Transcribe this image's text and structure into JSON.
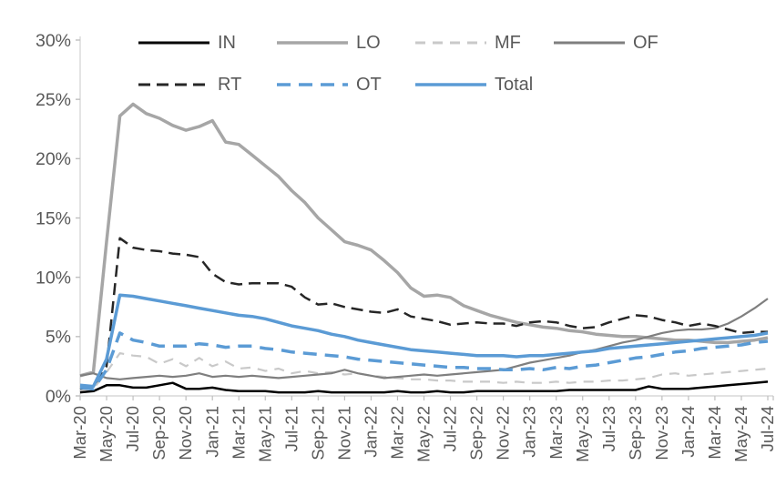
{
  "chart_data": {
    "type": "line",
    "title": "",
    "background": "#ffffff",
    "axis": {
      "line_color": "#d9d9d9",
      "tick_color": "#bfbfbf",
      "label_color": "#595959"
    },
    "ylim": [
      0,
      30
    ],
    "y_tick_step": 5,
    "y_tick_labels": [
      "0%",
      "5%",
      "10%",
      "15%",
      "20%",
      "25%",
      "30%"
    ],
    "x_label_every_n_months": 2,
    "x_tick_labels": [
      "Mar-20",
      "May-20",
      "Jul-20",
      "Sep-20",
      "Nov-20",
      "Jan-21",
      "Mar-21",
      "May-21",
      "Jul-21",
      "Sep-21",
      "Nov-21",
      "Jan-22",
      "Mar-22",
      "May-22",
      "Jul-22",
      "Sep-22",
      "Nov-22",
      "Jan-23",
      "Mar-23",
      "May-23",
      "Jul-23",
      "Sep-23",
      "Nov-23",
      "Jan-24",
      "Mar-24",
      "May-24",
      "Jul-24"
    ],
    "x_monthly_labels": [
      "Mar-20",
      "Apr-20",
      "May-20",
      "Jun-20",
      "Jul-20",
      "Aug-20",
      "Sep-20",
      "Oct-20",
      "Nov-20",
      "Dec-20",
      "Jan-21",
      "Feb-21",
      "Mar-21",
      "Apr-21",
      "May-21",
      "Jun-21",
      "Jul-21",
      "Aug-21",
      "Sep-21",
      "Oct-21",
      "Nov-21",
      "Dec-21",
      "Jan-22",
      "Feb-22",
      "Mar-22",
      "Apr-22",
      "May-22",
      "Jun-22",
      "Jul-22",
      "Aug-22",
      "Sep-22",
      "Oct-22",
      "Nov-22",
      "Dec-22",
      "Jan-23",
      "Feb-23",
      "Mar-23",
      "Apr-23",
      "May-23",
      "Jun-23",
      "Jul-23",
      "Aug-23",
      "Sep-23",
      "Oct-23",
      "Nov-23",
      "Dec-23",
      "Jan-24",
      "Feb-24",
      "Mar-24",
      "Apr-24",
      "May-24",
      "Jun-24",
      "Jul-24"
    ],
    "legend": {
      "position": "top",
      "rows": [
        [
          "IN",
          "LO",
          "MF",
          "OF"
        ],
        [
          "RT",
          "OT",
          "Total"
        ]
      ]
    },
    "series": [
      {
        "name": "IN",
        "color": "#000000",
        "dash": "",
        "width": 2.5,
        "values": [
          0.3,
          0.4,
          0.9,
          0.9,
          0.7,
          0.7,
          0.9,
          1.1,
          0.6,
          0.6,
          0.7,
          0.5,
          0.4,
          0.4,
          0.4,
          0.3,
          0.3,
          0.3,
          0.4,
          0.3,
          0.3,
          0.3,
          0.3,
          0.3,
          0.4,
          0.3,
          0.3,
          0.4,
          0.3,
          0.3,
          0.4,
          0.4,
          0.4,
          0.4,
          0.4,
          0.4,
          0.4,
          0.5,
          0.5,
          0.5,
          0.5,
          0.5,
          0.5,
          0.8,
          0.6,
          0.6,
          0.6,
          0.7,
          0.8,
          0.9,
          1.0,
          1.1,
          1.2
        ]
      },
      {
        "name": "LO",
        "color": "#a6a6a6",
        "dash": "",
        "width": 3.5,
        "values": [
          1.7,
          2.0,
          13.0,
          23.6,
          24.6,
          23.8,
          23.4,
          22.8,
          22.4,
          22.7,
          23.2,
          21.4,
          21.2,
          20.3,
          19.4,
          18.5,
          17.3,
          16.3,
          15.0,
          14.0,
          13.0,
          12.7,
          12.3,
          11.4,
          10.4,
          9.1,
          8.4,
          8.5,
          8.3,
          7.6,
          7.2,
          6.8,
          6.5,
          6.2,
          6.0,
          5.8,
          5.7,
          5.5,
          5.4,
          5.2,
          5.1,
          5.0,
          5.0,
          4.9,
          4.8,
          4.7,
          4.7,
          4.6,
          4.5,
          4.5,
          4.6,
          4.7,
          4.9
        ]
      },
      {
        "name": "MF",
        "color": "#c9c9c9",
        "dash": "11 8",
        "width": 2.2,
        "values": [
          0.5,
          0.6,
          2.0,
          3.6,
          3.4,
          3.3,
          2.7,
          3.1,
          2.5,
          3.2,
          2.5,
          2.9,
          2.3,
          2.4,
          2.1,
          2.3,
          1.9,
          2.1,
          1.9,
          2.0,
          1.8,
          1.9,
          1.7,
          1.6,
          1.5,
          1.4,
          1.4,
          1.3,
          1.3,
          1.2,
          1.2,
          1.2,
          1.1,
          1.2,
          1.1,
          1.1,
          1.2,
          1.1,
          1.2,
          1.2,
          1.3,
          1.3,
          1.4,
          1.5,
          1.8,
          1.9,
          1.7,
          1.8,
          1.9,
          2.0,
          2.1,
          2.2,
          2.3
        ]
      },
      {
        "name": "OF",
        "color": "#7f7f7f",
        "dash": "",
        "width": 2.2,
        "values": [
          1.7,
          1.9,
          1.5,
          1.4,
          1.5,
          1.6,
          1.7,
          1.6,
          1.7,
          1.9,
          1.6,
          1.7,
          1.6,
          1.7,
          1.6,
          1.5,
          1.6,
          1.7,
          1.8,
          1.9,
          2.2,
          1.9,
          1.7,
          1.5,
          1.6,
          1.7,
          1.8,
          1.7,
          1.8,
          1.9,
          2.0,
          2.1,
          2.2,
          2.5,
          2.8,
          3.0,
          3.2,
          3.4,
          3.7,
          3.9,
          4.2,
          4.5,
          4.7,
          5.0,
          5.3,
          5.5,
          5.6,
          5.6,
          5.7,
          6.1,
          6.7,
          7.4,
          8.2
        ]
      },
      {
        "name": "RT",
        "color": "#262626",
        "dash": "13 7",
        "width": 2.5,
        "values": [
          0.6,
          0.8,
          2.5,
          13.3,
          12.5,
          12.3,
          12.2,
          12.0,
          11.9,
          11.7,
          10.3,
          9.6,
          9.4,
          9.5,
          9.5,
          9.5,
          9.2,
          8.3,
          7.7,
          7.8,
          7.5,
          7.3,
          7.1,
          7.0,
          7.3,
          6.7,
          6.5,
          6.3,
          6.0,
          6.1,
          6.2,
          6.1,
          6.1,
          5.9,
          6.2,
          6.3,
          6.2,
          5.9,
          5.7,
          5.8,
          6.2,
          6.5,
          6.8,
          6.7,
          6.4,
          6.2,
          5.9,
          6.1,
          5.9,
          5.6,
          5.3,
          5.4,
          5.4
        ]
      },
      {
        "name": "OT",
        "color": "#5b9bd5",
        "dash": "15 9",
        "width": 3.5,
        "values": [
          0.7,
          0.6,
          2.2,
          5.3,
          4.7,
          4.5,
          4.2,
          4.2,
          4.2,
          4.4,
          4.3,
          4.1,
          4.2,
          4.2,
          4.0,
          3.9,
          3.7,
          3.6,
          3.5,
          3.4,
          3.3,
          3.1,
          3.0,
          2.9,
          2.8,
          2.7,
          2.6,
          2.5,
          2.4,
          2.4,
          2.3,
          2.3,
          2.2,
          2.2,
          2.3,
          2.2,
          2.4,
          2.3,
          2.5,
          2.6,
          2.8,
          3.0,
          3.2,
          3.3,
          3.5,
          3.7,
          3.8,
          4.0,
          4.1,
          4.2,
          4.3,
          4.5,
          4.6
        ]
      },
      {
        "name": "Total",
        "color": "#5b9bd5",
        "dash": "",
        "width": 3.5,
        "values": [
          0.9,
          0.8,
          3.1,
          8.5,
          8.4,
          8.2,
          8.0,
          7.8,
          7.6,
          7.4,
          7.2,
          7.0,
          6.8,
          6.7,
          6.5,
          6.2,
          5.9,
          5.7,
          5.5,
          5.2,
          5.0,
          4.7,
          4.5,
          4.3,
          4.1,
          3.9,
          3.8,
          3.7,
          3.6,
          3.5,
          3.4,
          3.4,
          3.4,
          3.3,
          3.4,
          3.4,
          3.5,
          3.6,
          3.7,
          3.8,
          4.0,
          4.1,
          4.2,
          4.3,
          4.4,
          4.5,
          4.6,
          4.7,
          4.8,
          4.9,
          5.0,
          5.1,
          5.3
        ]
      }
    ]
  }
}
